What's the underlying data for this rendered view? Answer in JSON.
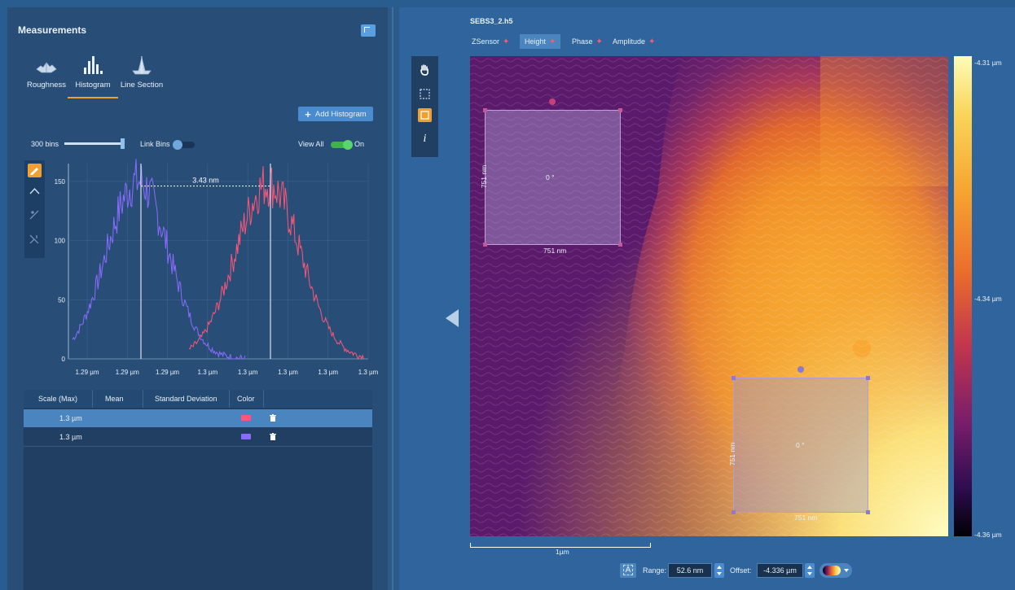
{
  "measurements": {
    "title": "Measurements",
    "tabs": [
      {
        "label": "Roughness",
        "selected": false
      },
      {
        "label": "Histogram",
        "selected": true
      },
      {
        "label": "Line Section",
        "selected": false
      }
    ],
    "add_button": "Add Histogram",
    "bins_label": "300 bins",
    "link_bins_label": "Link Bins",
    "view_all_label": "View All",
    "view_all_state": "On",
    "accent": "#f0a030"
  },
  "chart_data": {
    "type": "line",
    "y_ticks": [
      "0",
      "50",
      "100",
      "150"
    ],
    "x_ticks": [
      "1.29 µm",
      "1.29 µm",
      "1.29 µm",
      "1.3 µm",
      "1.3 µm",
      "1.3 µm",
      "1.3 µm",
      "1.3 µm"
    ],
    "ylim": [
      0,
      165
    ],
    "annotation": "3.43 nm",
    "series": [
      {
        "color": "#8a6bff",
        "peak_count": 150
      },
      {
        "color": "#ff5577",
        "peak_count": 148
      }
    ]
  },
  "table": {
    "columns": [
      "Scale (Max)",
      "Mean",
      "Standard Deviation",
      "Color"
    ],
    "rows": [
      {
        "scale": "1.3 µm",
        "color": "#ff5577",
        "selected": true
      },
      {
        "scale": "1.3 µm",
        "color": "#8a6bff",
        "selected": false
      }
    ]
  },
  "viewer": {
    "filename": "SEBS3_2.h5",
    "channels": [
      {
        "label": "ZSensor",
        "selected": false
      },
      {
        "label": "Height",
        "selected": true
      },
      {
        "label": "Phase",
        "selected": false
      },
      {
        "label": "Amplitude",
        "selected": false
      }
    ],
    "regions": [
      {
        "angle": "0 °",
        "width": "751 nm",
        "height": "751 nm"
      },
      {
        "angle": "0 °",
        "width": "751 nm",
        "height": "751 nm"
      }
    ],
    "colorbar": {
      "max": "-4.31 µm",
      "mid": "-4.34 µm",
      "min": "-4.36 µm"
    },
    "scalebar": "1µm",
    "range_label": "Range:",
    "range_value": "52.6 nm",
    "offset_label": "Offset:",
    "offset_value": "-4.336 µm",
    "autoscale_label": "A"
  }
}
